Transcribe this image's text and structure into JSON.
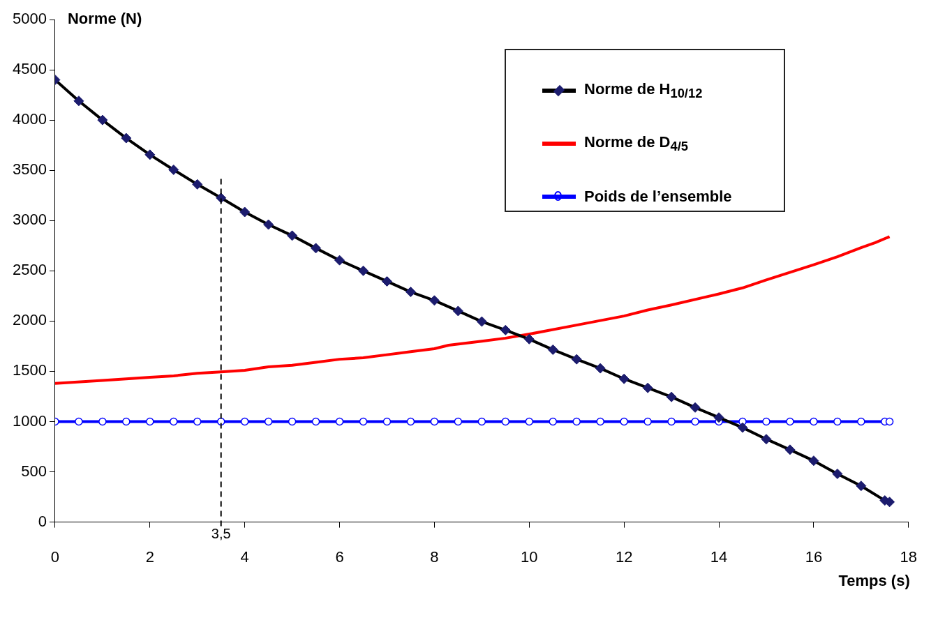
{
  "chart_data": {
    "type": "line",
    "xlabel": "Temps (s)",
    "ylabel": "Norme (N)",
    "xlim": [
      0,
      18
    ],
    "xticks": [
      0,
      2,
      4,
      6,
      8,
      10,
      12,
      14,
      16,
      18
    ],
    "ylim": [
      0,
      5000
    ],
    "yticks": [
      0,
      500,
      1000,
      1500,
      2000,
      2500,
      3000,
      3500,
      4000,
      4500,
      5000
    ],
    "grid": false,
    "legend": "top right",
    "series": [
      {
        "name": "Norme de H$_{10/12}$",
        "color": "#000000",
        "marker": "diamond",
        "x": [
          0,
          0.5,
          1,
          1.5,
          2,
          2.5,
          3,
          3.5,
          4,
          4.5,
          5,
          5.5,
          6,
          6.5,
          7,
          7.5,
          8,
          8.5,
          9,
          9.5,
          10,
          10.5,
          11,
          11.5,
          12,
          12.5,
          13,
          13.5,
          14,
          14.5,
          15,
          15.5,
          16,
          16.5,
          17,
          17.5,
          17.6
        ],
        "values": [
          4400,
          4190,
          4000,
          3820,
          3655,
          3505,
          3360,
          3225,
          3085,
          2960,
          2850,
          2725,
          2605,
          2500,
          2395,
          2290,
          2205,
          2100,
          1995,
          1910,
          1820,
          1715,
          1620,
          1530,
          1425,
          1335,
          1245,
          1140,
          1040,
          940,
          825,
          720,
          610,
          480,
          360,
          215,
          200
        ]
      },
      {
        "name": "Norme de D$_{4/5}$",
        "color": "#ff0000",
        "marker": "none",
        "x": [
          0,
          1,
          2,
          2.5,
          3,
          3.5,
          4,
          4.5,
          5,
          5.5,
          6,
          6.5,
          7,
          7.5,
          8,
          8.3,
          9,
          9.5,
          10,
          11,
          12,
          12.5,
          13,
          14,
          14.5,
          15,
          16,
          16.5,
          17,
          17.3,
          17.6
        ],
        "values": [
          1380,
          1410,
          1440,
          1455,
          1480,
          1495,
          1510,
          1545,
          1560,
          1590,
          1620,
          1635,
          1665,
          1695,
          1725,
          1760,
          1800,
          1830,
          1870,
          1960,
          2050,
          2110,
          2160,
          2270,
          2330,
          2410,
          2560,
          2640,
          2730,
          2780,
          2840
        ]
      },
      {
        "name": "Poids de l’ensemble",
        "color": "#0000ff",
        "marker": "circle",
        "x": [
          0,
          0.5,
          1,
          1.5,
          2,
          2.5,
          3,
          3.5,
          4,
          4.5,
          5,
          5.5,
          6,
          6.5,
          7,
          7.5,
          8,
          8.5,
          9,
          9.5,
          10,
          10.5,
          11,
          11.5,
          12,
          12.5,
          13,
          13.5,
          14,
          14.5,
          15,
          15.5,
          16,
          16.5,
          17,
          17.5,
          17.6
        ],
        "values": [
          1000,
          1000,
          1000,
          1000,
          1000,
          1000,
          1000,
          1000,
          1000,
          1000,
          1000,
          1000,
          1000,
          1000,
          1000,
          1000,
          1000,
          1000,
          1000,
          1000,
          1000,
          1000,
          1000,
          1000,
          1000,
          1000,
          1000,
          1000,
          1000,
          1000,
          1000,
          1000,
          1000,
          1000,
          1000,
          1000,
          1000
        ]
      }
    ],
    "ref_lines": [
      {
        "axis": "x",
        "value": 3.5,
        "label": "3,5",
        "line_style": "dashed",
        "color": "#000000"
      }
    ]
  }
}
